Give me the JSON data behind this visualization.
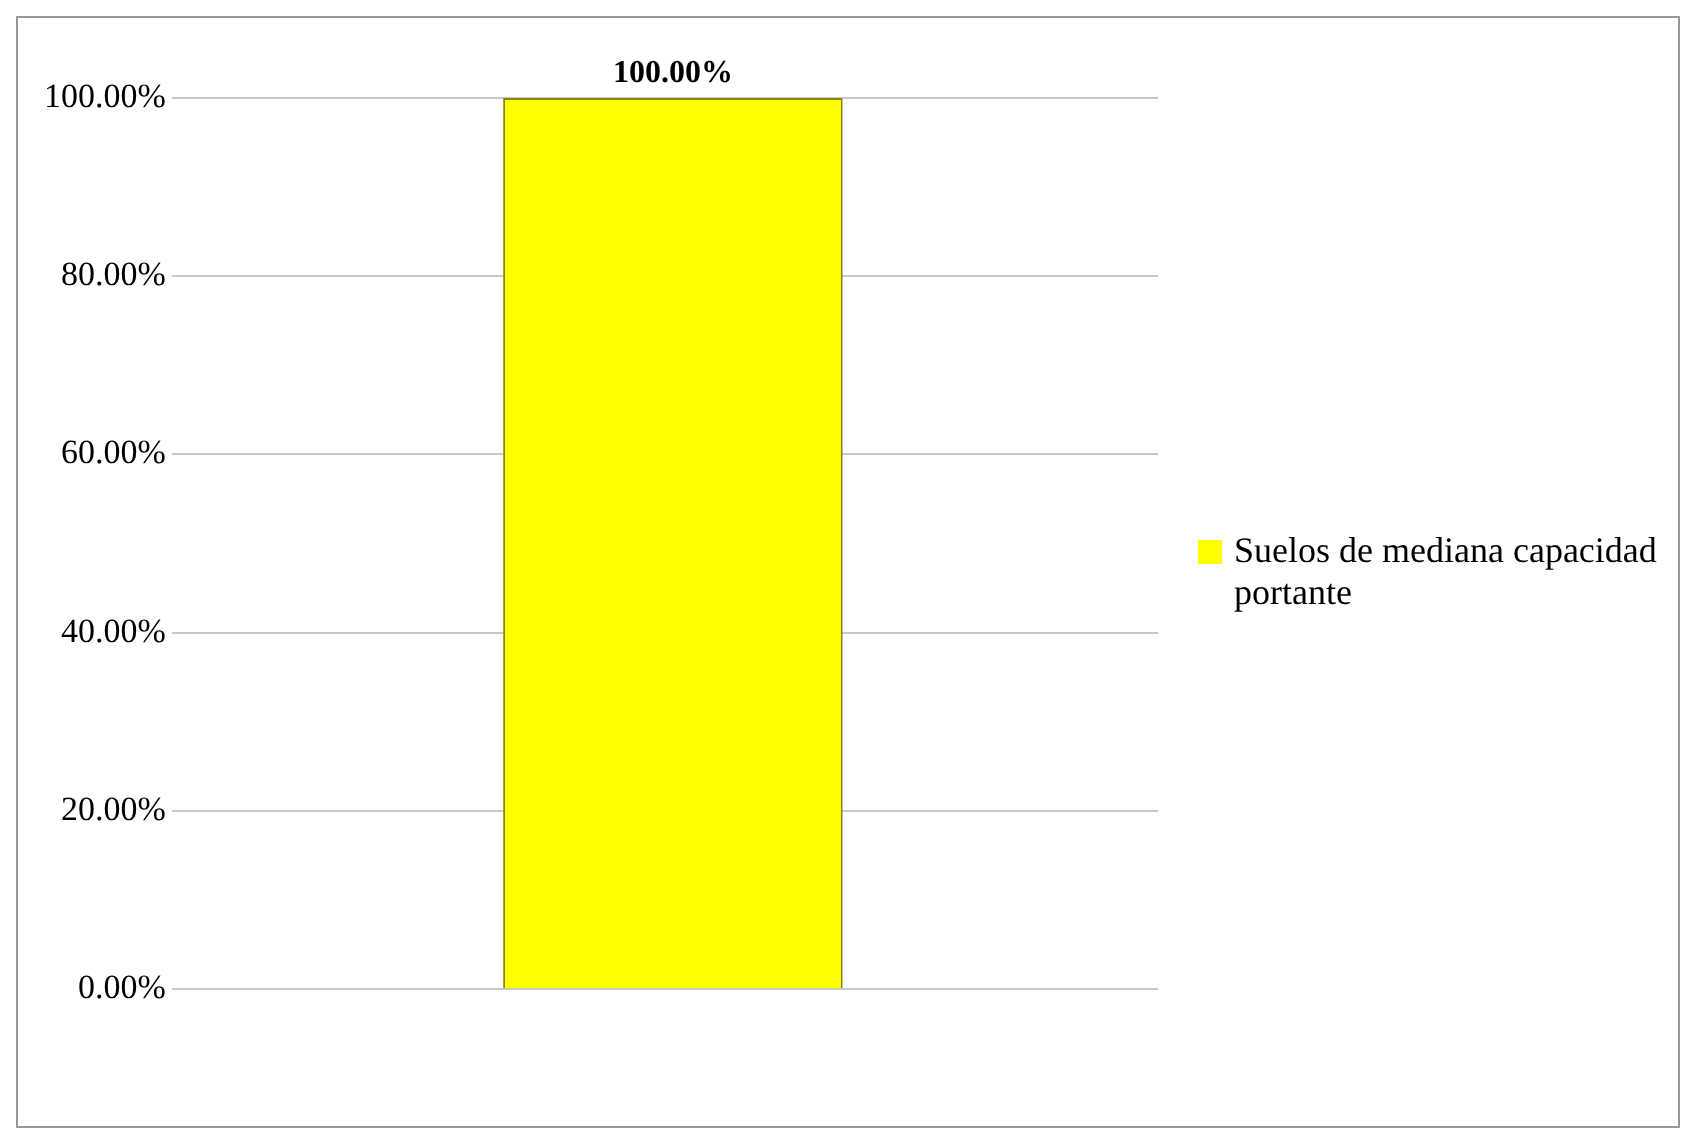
{
  "chart_data": {
    "type": "bar",
    "categories": [
      null
    ],
    "series": [
      {
        "name": "Suelos de mediana capacidad portante",
        "color": "#ffff00",
        "values": [
          100
        ],
        "value_labels": [
          "100.00%"
        ]
      }
    ],
    "ylim": [
      0,
      100
    ],
    "yticks": [
      {
        "value": 0,
        "label": "0.00%"
      },
      {
        "value": 20,
        "label": "20.00%"
      },
      {
        "value": 40,
        "label": "40.00%"
      },
      {
        "value": 60,
        "label": "60.00%"
      },
      {
        "value": 80,
        "label": "80.00%"
      },
      {
        "value": 100,
        "label": "100.00%"
      }
    ],
    "grid": "y",
    "legend": "right"
  }
}
